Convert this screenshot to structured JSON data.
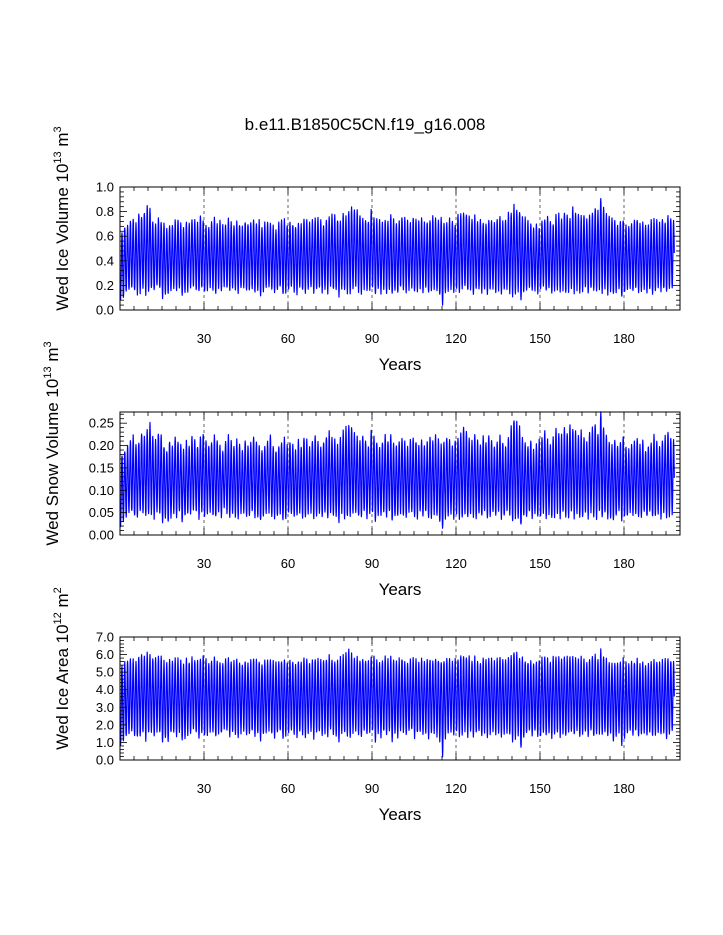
{
  "title": "b.e11.B1850C5CN.f19_g16.008",
  "line_color": "#0000ff",
  "chart_data": [
    {
      "type": "line",
      "ylabel": "Wed Ice Volume 10",
      "ylabel_exp": "13",
      "ylabel_unit": "m",
      "ylabel_unit_exp": "3",
      "xlabel": "Years",
      "xlim": [
        0,
        200
      ],
      "ylim": [
        0,
        1.0
      ],
      "x_ticks": [
        30,
        60,
        90,
        120,
        150,
        180
      ],
      "x_tick_labels": [
        "30",
        "60",
        "90",
        "120",
        "150",
        "180"
      ],
      "y_ticks": [
        0,
        0.2,
        0.4,
        0.6,
        0.8,
        1.0
      ],
      "y_tick_labels": [
        "0.0",
        "0.2",
        "0.4",
        "0.6",
        "0.8",
        "1.0"
      ],
      "grid_x": "dashed at major ticks",
      "seasonal_max_per_year": [
        0.62,
        0.68,
        0.7,
        0.72,
        0.74,
        0.7,
        0.78,
        0.76,
        0.8,
        0.84,
        0.82,
        0.72,
        0.7,
        0.74,
        0.72,
        0.7,
        0.66,
        0.7,
        0.68,
        0.72,
        0.74,
        0.7,
        0.68,
        0.72,
        0.7,
        0.74,
        0.72,
        0.7,
        0.76,
        0.72,
        0.7,
        0.68,
        0.72,
        0.74,
        0.7,
        0.72,
        0.68,
        0.7,
        0.74,
        0.72,
        0.7,
        0.72,
        0.7,
        0.68,
        0.72,
        0.7,
        0.72,
        0.74,
        0.7,
        0.72,
        0.68,
        0.7,
        0.72,
        0.7,
        0.68,
        0.66,
        0.7,
        0.72,
        0.74,
        0.7,
        0.72,
        0.7,
        0.68,
        0.72,
        0.7,
        0.74,
        0.72,
        0.7,
        0.72,
        0.76,
        0.74,
        0.72,
        0.7,
        0.74,
        0.76,
        0.78,
        0.76,
        0.74,
        0.72,
        0.78,
        0.76,
        0.8,
        0.84,
        0.82,
        0.8,
        0.78,
        0.76,
        0.74,
        0.72,
        0.8,
        0.76,
        0.74,
        0.72,
        0.7,
        0.74,
        0.72,
        0.76,
        0.74,
        0.7,
        0.72,
        0.76,
        0.74,
        0.72,
        0.7,
        0.76,
        0.74,
        0.72,
        0.74,
        0.7,
        0.72,
        0.74,
        0.76,
        0.74,
        0.72,
        0.74,
        0.72,
        0.7,
        0.74,
        0.72,
        0.7,
        0.76,
        0.78,
        0.8,
        0.78,
        0.76,
        0.74,
        0.76,
        0.72,
        0.74,
        0.72,
        0.7,
        0.74,
        0.72,
        0.7,
        0.74,
        0.76,
        0.72,
        0.74,
        0.78,
        0.8,
        0.84,
        0.82,
        0.8,
        0.76,
        0.74,
        0.72,
        0.7,
        0.68,
        0.7,
        0.66,
        0.72,
        0.74,
        0.76,
        0.72,
        0.7,
        0.76,
        0.78,
        0.74,
        0.8,
        0.78,
        0.76,
        0.82,
        0.8,
        0.78,
        0.76,
        0.78,
        0.74,
        0.76,
        0.8,
        0.84,
        0.8,
        0.9,
        0.84,
        0.78,
        0.76,
        0.74,
        0.72,
        0.7,
        0.72,
        0.74,
        0.7,
        0.68,
        0.7,
        0.72,
        0.74,
        0.7,
        0.72,
        0.68,
        0.7,
        0.72,
        0.74,
        0.72,
        0.7,
        0.74,
        0.72,
        0.76,
        0.74,
        0.72
      ],
      "seasonal_min_per_year": [
        0.08,
        0.1,
        0.14,
        0.16,
        0.18,
        0.16,
        0.14,
        0.15,
        0.17,
        0.13,
        0.16,
        0.18,
        0.15,
        0.2,
        0.17,
        0.1,
        0.14,
        0.12,
        0.16,
        0.18,
        0.15,
        0.17,
        0.12,
        0.14,
        0.16,
        0.18,
        0.2,
        0.16,
        0.14,
        0.18,
        0.15,
        0.17,
        0.19,
        0.16,
        0.14,
        0.18,
        0.16,
        0.2,
        0.17,
        0.15,
        0.18,
        0.16,
        0.14,
        0.17,
        0.19,
        0.16,
        0.15,
        0.18,
        0.14,
        0.16,
        0.12,
        0.15,
        0.17,
        0.19,
        0.16,
        0.14,
        0.16,
        0.18,
        0.12,
        0.15,
        0.17,
        0.19,
        0.16,
        0.14,
        0.18,
        0.16,
        0.15,
        0.17,
        0.19,
        0.14,
        0.16,
        0.18,
        0.15,
        0.17,
        0.14,
        0.19,
        0.16,
        0.15,
        0.12,
        0.18,
        0.16,
        0.15,
        0.13,
        0.17,
        0.19,
        0.16,
        0.14,
        0.18,
        0.15,
        0.17,
        0.19,
        0.12,
        0.16,
        0.14,
        0.18,
        0.15,
        0.17,
        0.12,
        0.16,
        0.14,
        0.18,
        0.16,
        0.15,
        0.17,
        0.19,
        0.14,
        0.16,
        0.18,
        0.15,
        0.17,
        0.14,
        0.16,
        0.18,
        0.15,
        0.12,
        0.03,
        0.14,
        0.16,
        0.18,
        0.15,
        0.17,
        0.14,
        0.16,
        0.19,
        0.15,
        0.17,
        0.14,
        0.16,
        0.18,
        0.15,
        0.17,
        0.14,
        0.16,
        0.18,
        0.15,
        0.17,
        0.14,
        0.16,
        0.18,
        0.15,
        0.12,
        0.14,
        0.16,
        0.08,
        0.14,
        0.16,
        0.18,
        0.15,
        0.17,
        0.14,
        0.16,
        0.18,
        0.15,
        0.17,
        0.14,
        0.16,
        0.18,
        0.15,
        0.17,
        0.14,
        0.16,
        0.18,
        0.15,
        0.17,
        0.14,
        0.16,
        0.18,
        0.15,
        0.17,
        0.14,
        0.16,
        0.18,
        0.15,
        0.17,
        0.14,
        0.16,
        0.12,
        0.15,
        0.17,
        0.1,
        0.14,
        0.16,
        0.18,
        0.15,
        0.17,
        0.14,
        0.16,
        0.18,
        0.15,
        0.17,
        0.14,
        0.16,
        0.18,
        0.15,
        0.17,
        0.14,
        0.16,
        0.18
      ]
    },
    {
      "type": "line",
      "ylabel": "Wed Snow Volume 10",
      "ylabel_exp": "13",
      "ylabel_unit": "m",
      "ylabel_unit_exp": "3",
      "xlabel": "Years",
      "xlim": [
        0,
        200
      ],
      "ylim": [
        0,
        0.275
      ],
      "x_ticks": [
        30,
        60,
        90,
        120,
        150,
        180
      ],
      "x_tick_labels": [
        "30",
        "60",
        "90",
        "120",
        "150",
        "180"
      ],
      "y_ticks": [
        0,
        0.05,
        0.1,
        0.15,
        0.2,
        0.25
      ],
      "y_tick_labels": [
        "0.00",
        "0.05",
        "0.10",
        "0.15",
        "0.20",
        "0.25"
      ],
      "grid_x": "dashed at major ticks",
      "seasonal_max_per_year": [
        0.18,
        0.19,
        0.2,
        0.21,
        0.22,
        0.2,
        0.21,
        0.23,
        0.22,
        0.24,
        0.25,
        0.22,
        0.21,
        0.23,
        0.22,
        0.2,
        0.19,
        0.21,
        0.2,
        0.22,
        0.21,
        0.2,
        0.19,
        0.21,
        0.2,
        0.22,
        0.21,
        0.2,
        0.22,
        0.23,
        0.21,
        0.2,
        0.21,
        0.22,
        0.21,
        0.2,
        0.19,
        0.21,
        0.22,
        0.21,
        0.2,
        0.21,
        0.2,
        0.19,
        0.21,
        0.2,
        0.21,
        0.22,
        0.21,
        0.2,
        0.19,
        0.2,
        0.21,
        0.22,
        0.2,
        0.19,
        0.2,
        0.21,
        0.22,
        0.2,
        0.21,
        0.2,
        0.19,
        0.21,
        0.2,
        0.22,
        0.21,
        0.2,
        0.21,
        0.22,
        0.21,
        0.2,
        0.21,
        0.22,
        0.23,
        0.22,
        0.21,
        0.2,
        0.22,
        0.23,
        0.24,
        0.25,
        0.24,
        0.23,
        0.22,
        0.21,
        0.22,
        0.21,
        0.2,
        0.23,
        0.22,
        0.21,
        0.2,
        0.21,
        0.22,
        0.21,
        0.22,
        0.21,
        0.2,
        0.21,
        0.22,
        0.21,
        0.2,
        0.21,
        0.22,
        0.21,
        0.2,
        0.21,
        0.2,
        0.21,
        0.22,
        0.21,
        0.22,
        0.21,
        0.2,
        0.21,
        0.22,
        0.21,
        0.2,
        0.21,
        0.22,
        0.23,
        0.24,
        0.23,
        0.22,
        0.21,
        0.22,
        0.21,
        0.2,
        0.22,
        0.21,
        0.22,
        0.21,
        0.2,
        0.21,
        0.22,
        0.21,
        0.2,
        0.22,
        0.24,
        0.26,
        0.25,
        0.24,
        0.22,
        0.21,
        0.2,
        0.21,
        0.19,
        0.2,
        0.21,
        0.22,
        0.23,
        0.21,
        0.2,
        0.22,
        0.24,
        0.23,
        0.22,
        0.24,
        0.23,
        0.25,
        0.24,
        0.23,
        0.22,
        0.23,
        0.22,
        0.21,
        0.23,
        0.24,
        0.25,
        0.23,
        0.27,
        0.24,
        0.22,
        0.21,
        0.2,
        0.21,
        0.2,
        0.21,
        0.22,
        0.2,
        0.19,
        0.2,
        0.21,
        0.22,
        0.2,
        0.21,
        0.19,
        0.2,
        0.21,
        0.22,
        0.21,
        0.2,
        0.21,
        0.22,
        0.23,
        0.22,
        0.21
      ],
      "seasonal_min_per_year": [
        0.02,
        0.03,
        0.04,
        0.05,
        0.05,
        0.04,
        0.04,
        0.05,
        0.05,
        0.04,
        0.05,
        0.05,
        0.04,
        0.05,
        0.05,
        0.03,
        0.04,
        0.03,
        0.04,
        0.05,
        0.04,
        0.05,
        0.03,
        0.04,
        0.05,
        0.05,
        0.06,
        0.05,
        0.04,
        0.05,
        0.04,
        0.05,
        0.05,
        0.04,
        0.04,
        0.05,
        0.04,
        0.06,
        0.05,
        0.04,
        0.05,
        0.04,
        0.04,
        0.05,
        0.05,
        0.04,
        0.04,
        0.05,
        0.04,
        0.04,
        0.03,
        0.04,
        0.05,
        0.05,
        0.04,
        0.04,
        0.04,
        0.05,
        0.03,
        0.04,
        0.05,
        0.05,
        0.04,
        0.04,
        0.05,
        0.04,
        0.04,
        0.05,
        0.05,
        0.04,
        0.04,
        0.05,
        0.04,
        0.05,
        0.04,
        0.05,
        0.04,
        0.04,
        0.03,
        0.05,
        0.04,
        0.04,
        0.04,
        0.05,
        0.05,
        0.04,
        0.04,
        0.05,
        0.04,
        0.05,
        0.05,
        0.03,
        0.04,
        0.04,
        0.05,
        0.04,
        0.05,
        0.03,
        0.04,
        0.04,
        0.05,
        0.04,
        0.04,
        0.05,
        0.05,
        0.04,
        0.04,
        0.05,
        0.04,
        0.05,
        0.04,
        0.04,
        0.05,
        0.04,
        0.03,
        0.01,
        0.04,
        0.04,
        0.05,
        0.04,
        0.05,
        0.04,
        0.04,
        0.05,
        0.04,
        0.05,
        0.04,
        0.04,
        0.05,
        0.04,
        0.05,
        0.04,
        0.04,
        0.05,
        0.04,
        0.05,
        0.04,
        0.04,
        0.05,
        0.04,
        0.03,
        0.04,
        0.04,
        0.02,
        0.04,
        0.04,
        0.05,
        0.04,
        0.05,
        0.04,
        0.04,
        0.05,
        0.04,
        0.05,
        0.04,
        0.04,
        0.05,
        0.04,
        0.05,
        0.04,
        0.04,
        0.05,
        0.04,
        0.05,
        0.04,
        0.04,
        0.05,
        0.04,
        0.05,
        0.04,
        0.04,
        0.05,
        0.04,
        0.05,
        0.04,
        0.04,
        0.03,
        0.04,
        0.05,
        0.03,
        0.04,
        0.04,
        0.05,
        0.04,
        0.05,
        0.04,
        0.04,
        0.05,
        0.04,
        0.05,
        0.04,
        0.04,
        0.05,
        0.04,
        0.05,
        0.04,
        0.04,
        0.05
      ]
    },
    {
      "type": "line",
      "ylabel": "Wed Ice Area 10",
      "ylabel_exp": "12",
      "ylabel_unit": "m",
      "ylabel_unit_exp": "2",
      "xlabel": "Years",
      "xlim": [
        0,
        200
      ],
      "ylim": [
        0,
        7.0
      ],
      "x_ticks": [
        30,
        60,
        90,
        120,
        150,
        180
      ],
      "x_tick_labels": [
        "30",
        "60",
        "90",
        "120",
        "150",
        "180"
      ],
      "y_ticks": [
        0,
        1,
        2,
        3,
        4,
        5,
        6,
        7
      ],
      "y_tick_labels": [
        "0.0",
        "1.0",
        "2.0",
        "3.0",
        "4.0",
        "5.0",
        "6.0",
        "7.0"
      ],
      "grid_x": "dashed at major ticks",
      "seasonal_max_per_year": [
        5.4,
        5.5,
        5.6,
        5.7,
        5.8,
        5.6,
        5.9,
        6.0,
        5.8,
        6.1,
        5.9,
        5.8,
        5.7,
        5.9,
        5.8,
        5.6,
        5.5,
        5.7,
        5.6,
        5.8,
        5.7,
        5.6,
        5.5,
        5.7,
        5.6,
        5.8,
        5.7,
        5.6,
        5.8,
        5.9,
        5.7,
        5.6,
        5.7,
        5.8,
        5.7,
        5.6,
        5.5,
        5.7,
        5.8,
        5.7,
        5.6,
        5.7,
        5.6,
        5.5,
        5.7,
        5.6,
        5.7,
        5.8,
        5.7,
        5.6,
        5.5,
        5.6,
        5.7,
        5.8,
        5.6,
        5.5,
        5.6,
        5.7,
        5.8,
        5.6,
        5.7,
        5.6,
        5.5,
        5.7,
        5.6,
        5.8,
        5.7,
        5.6,
        5.7,
        5.8,
        5.7,
        5.6,
        5.7,
        5.8,
        5.9,
        5.8,
        5.7,
        5.6,
        5.8,
        5.9,
        6.0,
        6.2,
        6.0,
        5.9,
        5.8,
        5.7,
        5.8,
        5.7,
        5.6,
        5.9,
        5.8,
        5.7,
        5.6,
        5.7,
        5.8,
        5.7,
        5.8,
        5.7,
        5.6,
        5.7,
        5.8,
        5.7,
        5.6,
        5.7,
        5.8,
        5.7,
        5.6,
        5.7,
        5.6,
        5.7,
        5.8,
        5.7,
        5.8,
        5.7,
        5.6,
        5.7,
        5.8,
        5.7,
        5.6,
        5.7,
        5.8,
        5.9,
        6.0,
        5.9,
        5.8,
        5.7,
        5.8,
        5.7,
        5.6,
        5.8,
        5.7,
        5.8,
        5.7,
        5.6,
        5.7,
        5.8,
        5.7,
        5.6,
        5.8,
        5.9,
        6.2,
        6.0,
        5.9,
        5.8,
        5.7,
        5.6,
        5.7,
        5.5,
        5.6,
        5.7,
        5.8,
        5.9,
        5.7,
        5.6,
        5.8,
        5.9,
        5.8,
        5.7,
        5.9,
        5.8,
        6.0,
        5.9,
        5.8,
        5.7,
        5.8,
        5.7,
        5.6,
        5.8,
        5.9,
        6.0,
        5.8,
        6.3,
        5.9,
        5.7,
        5.6,
        5.5,
        5.6,
        5.5,
        5.6,
        5.7,
        5.5,
        5.4,
        5.5,
        5.6,
        5.7,
        5.5,
        5.6,
        5.4,
        5.5,
        5.6,
        5.7,
        5.6,
        5.5,
        5.6,
        5.7,
        5.8,
        5.7,
        5.6
      ],
      "seasonal_min_per_year": [
        0.8,
        1.0,
        1.3,
        1.5,
        1.6,
        1.4,
        1.3,
        1.4,
        1.6,
        1.2,
        1.5,
        1.6,
        1.4,
        1.7,
        1.6,
        1.0,
        1.3,
        1.1,
        1.5,
        1.6,
        1.4,
        1.6,
        1.1,
        1.3,
        1.5,
        1.6,
        1.8,
        1.5,
        1.3,
        1.6,
        1.4,
        1.5,
        1.7,
        1.5,
        1.3,
        1.6,
        1.5,
        1.8,
        1.6,
        1.4,
        1.6,
        1.5,
        1.3,
        1.6,
        1.7,
        1.5,
        1.4,
        1.6,
        1.3,
        1.5,
        1.1,
        1.4,
        1.6,
        1.7,
        1.5,
        1.3,
        1.5,
        1.6,
        1.1,
        1.4,
        1.6,
        1.7,
        1.5,
        1.3,
        1.6,
        1.5,
        1.4,
        1.6,
        1.7,
        1.3,
        1.5,
        1.6,
        1.4,
        1.6,
        1.3,
        1.7,
        1.5,
        1.4,
        1.1,
        1.6,
        1.5,
        1.4,
        1.2,
        1.6,
        1.7,
        1.5,
        1.3,
        1.6,
        1.4,
        1.6,
        1.7,
        1.1,
        1.5,
        1.3,
        1.6,
        1.4,
        1.6,
        1.1,
        1.5,
        1.3,
        1.6,
        1.5,
        1.4,
        1.6,
        1.7,
        1.3,
        1.5,
        1.6,
        1.4,
        1.6,
        1.3,
        1.5,
        1.6,
        1.4,
        1.1,
        0.3,
        1.3,
        1.5,
        1.6,
        1.4,
        1.6,
        1.3,
        1.5,
        1.7,
        1.4,
        1.6,
        1.3,
        1.5,
        1.6,
        1.4,
        1.6,
        1.3,
        1.5,
        1.6,
        1.4,
        1.6,
        1.3,
        1.5,
        1.6,
        1.4,
        1.1,
        1.3,
        1.5,
        0.6,
        1.3,
        1.5,
        1.6,
        1.4,
        1.6,
        1.3,
        1.5,
        1.6,
        1.4,
        1.6,
        1.3,
        1.5,
        1.6,
        1.4,
        1.6,
        1.3,
        1.5,
        1.6,
        1.4,
        1.6,
        1.3,
        1.5,
        1.6,
        1.4,
        1.6,
        1.3,
        1.5,
        1.6,
        1.4,
        1.6,
        1.3,
        1.5,
        1.1,
        1.4,
        1.6,
        0.9,
        1.3,
        1.5,
        1.6,
        1.4,
        1.6,
        1.3,
        1.5,
        1.6,
        1.4,
        1.6,
        1.3,
        1.5,
        1.6,
        1.4,
        1.6,
        1.3,
        1.5,
        1.6
      ]
    }
  ]
}
